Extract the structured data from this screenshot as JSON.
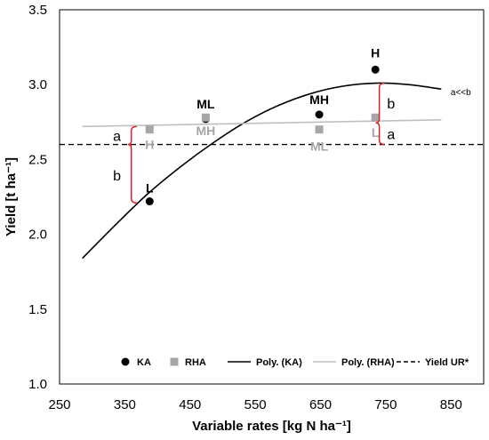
{
  "chart_data": {
    "type": "scatter",
    "xlabel": "Variable rates [kg N ha⁻¹]",
    "ylabel": "Yield [t ha⁻¹]",
    "xlim": [
      250,
      900
    ],
    "ylim": [
      1.0,
      3.5
    ],
    "xticks": [
      250,
      350,
      450,
      550,
      650,
      750,
      850
    ],
    "yticks": [
      "1.0",
      "1.5",
      "2.0",
      "2.5",
      "3.0",
      "3.5"
    ],
    "grid": false,
    "legend_position": "bottom",
    "series": [
      {
        "name": "KA",
        "kind": "points",
        "marker": "circle",
        "color": "#000000",
        "points": [
          {
            "x": 388,
            "y": 2.22,
            "label": "L"
          },
          {
            "x": 474,
            "y": 2.77,
            "label": "ML"
          },
          {
            "x": 648,
            "y": 2.8,
            "label": "MH"
          },
          {
            "x": 734,
            "y": 3.1,
            "label": "H"
          }
        ]
      },
      {
        "name": "RHA",
        "kind": "points",
        "marker": "square",
        "color": "#a6a6a6",
        "points": [
          {
            "x": 388,
            "y": 2.7,
            "label": "H"
          },
          {
            "x": 474,
            "y": 2.78,
            "label": "MH"
          },
          {
            "x": 648,
            "y": 2.7,
            "label": "ML"
          },
          {
            "x": 734,
            "y": 2.78,
            "label": "L"
          }
        ]
      },
      {
        "name": "Poly. (KA)",
        "kind": "curve",
        "color": "#000000",
        "x": [
          285,
          335,
          385,
          435,
          485,
          535,
          585,
          635,
          685,
          735,
          785,
          835
        ],
        "y": [
          1.84,
          2.06,
          2.27,
          2.45,
          2.61,
          2.75,
          2.86,
          2.94,
          2.99,
          3.01,
          3.0,
          2.97
        ]
      },
      {
        "name": "Poly. (RHA)",
        "kind": "curve",
        "color": "#bfbfbf",
        "x": [
          285,
          835
        ],
        "y": [
          2.72,
          2.765
        ]
      },
      {
        "name": "Yield UR*",
        "kind": "hline",
        "color": "#000000",
        "dashed": true,
        "y": 2.6
      }
    ],
    "annotations": [
      {
        "text": "a",
        "x": 338,
        "y": 2.655
      },
      {
        "text": "b",
        "x": 338,
        "y": 2.39
      },
      {
        "text": "b",
        "x": 758,
        "y": 2.87
      },
      {
        "text": "a",
        "x": 758,
        "y": 2.665
      },
      {
        "text": "a<<b",
        "x": 865,
        "y": 2.96
      }
    ],
    "brackets": [
      {
        "x": 360,
        "y_top": 2.72,
        "y_mid": 2.6,
        "y_bottom": 2.21,
        "color": "#e8141c"
      },
      {
        "x": 740,
        "y_top": 3.01,
        "y_mid": 2.745,
        "y_bottom": 2.6,
        "color": "#e8141c"
      }
    ]
  }
}
